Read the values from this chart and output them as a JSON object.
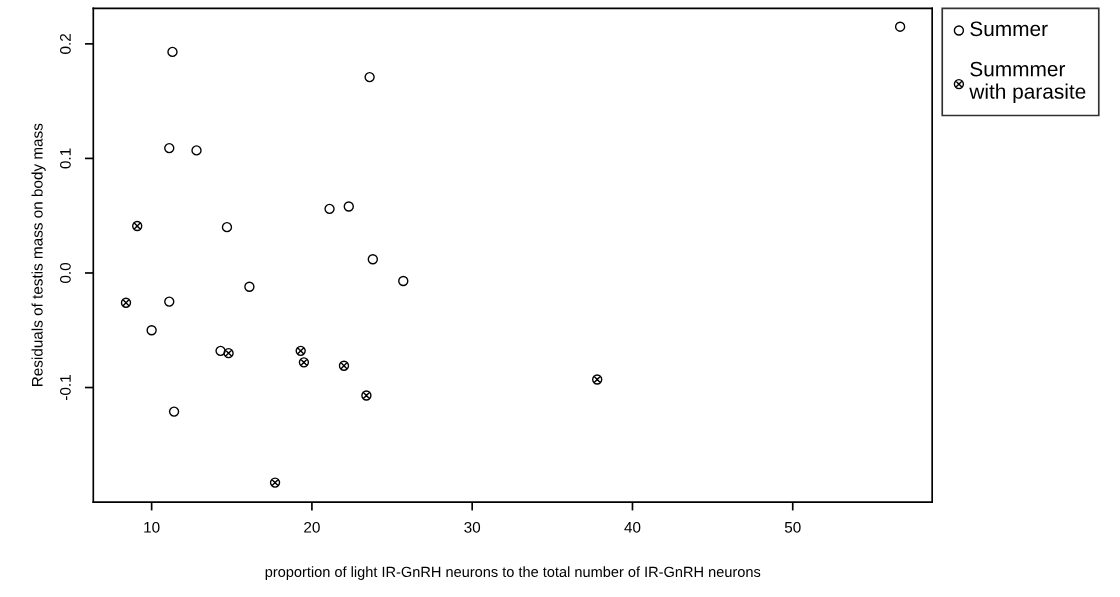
{
  "chart_data": {
    "type": "scatter",
    "xlabel": "proportion of light IR-GnRH neurons to the total number of IR-GnRH neurons",
    "ylabel": "Residuals of testis mass on body mass",
    "xlim": [
      6.36,
      58.7
    ],
    "ylim": [
      -0.2,
      0.231
    ],
    "xticks": [
      10,
      20,
      30,
      40,
      50
    ],
    "yticks": [
      {
        "value": -0.1,
        "label": "-0.1"
      },
      {
        "value": 0.0,
        "label": "0.0"
      },
      {
        "value": 0.1,
        "label": "0.1"
      },
      {
        "value": 0.2,
        "label": "0.2"
      }
    ],
    "grid": false,
    "legend": "right",
    "series": [
      {
        "name": "Summer",
        "color": "#000000",
        "marker": "circle",
        "x": [
          11.3,
          23.6,
          11.1,
          12.8,
          14.7,
          21.1,
          22.3,
          23.8,
          25.7,
          16.1,
          11.1,
          10.0,
          14.3,
          11.4,
          56.7
        ],
        "values": [
          0.193,
          0.171,
          0.109,
          0.107,
          0.04,
          0.056,
          0.058,
          0.012,
          -0.007,
          -0.012,
          -0.025,
          -0.05,
          -0.068,
          -0.121,
          0.215
        ]
      },
      {
        "name": "Summmer\nwith parasite",
        "color": "#000000",
        "marker": "cross",
        "x": [
          9.1,
          8.4,
          14.8,
          19.3,
          19.5,
          22.0,
          23.4,
          17.7,
          37.8
        ],
        "values": [
          0.041,
          -0.026,
          -0.07,
          -0.068,
          -0.078,
          -0.081,
          -0.107,
          -0.183,
          -0.093
        ]
      }
    ]
  }
}
